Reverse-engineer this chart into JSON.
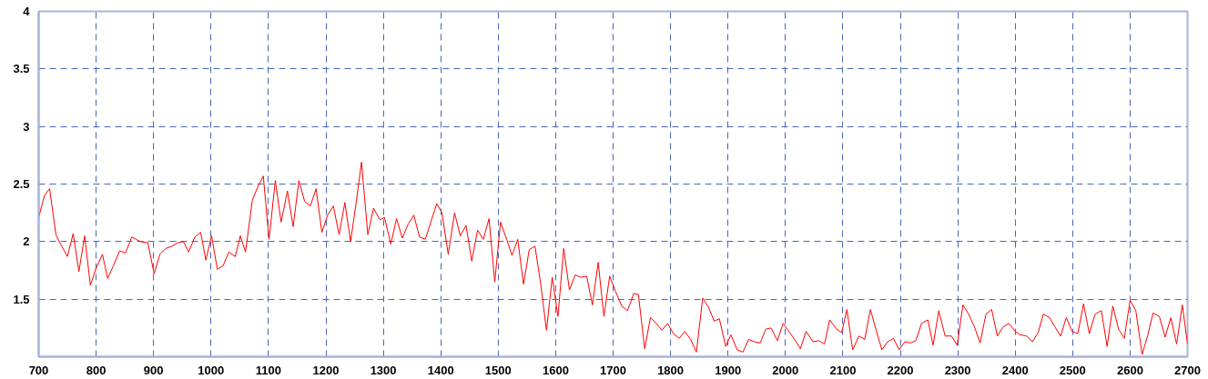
{
  "chart_data": {
    "type": "line",
    "x": [
      700,
      710,
      719,
      730,
      738,
      750,
      760,
      770,
      780,
      790,
      800,
      811,
      820,
      830,
      841,
      851,
      862,
      877,
      890,
      901,
      911,
      921,
      932,
      942,
      952,
      961,
      972,
      982,
      991,
      1001,
      1011,
      1021,
      1031,
      1042,
      1051,
      1060,
      1072,
      1081,
      1091,
      1101,
      1112,
      1122,
      1133,
      1143,
      1153,
      1163,
      1173,
      1183,
      1193,
      1203,
      1213,
      1223,
      1233,
      1243,
      1253,
      1262,
      1273,
      1283,
      1294,
      1302,
      1313,
      1323,
      1333,
      1343,
      1353,
      1363,
      1373,
      1393,
      1402,
      1413,
      1424,
      1434,
      1444,
      1454,
      1464,
      1474,
      1484,
      1494,
      1504,
      1514,
      1524,
      1534,
      1544,
      1554,
      1564,
      1574,
      1584,
      1594,
      1604,
      1614,
      1624,
      1634,
      1644,
      1654,
      1664,
      1674,
      1684,
      1694,
      1704,
      1715,
      1725,
      1736,
      1744,
      1755,
      1765,
      1775,
      1785,
      1795,
      1805,
      1815,
      1825,
      1835,
      1845,
      1856,
      1866,
      1876,
      1885,
      1896,
      1905,
      1916,
      1926,
      1936,
      1946,
      1956,
      1966,
      1975,
      1986,
      1996,
      2006,
      2016,
      2026,
      2036,
      2048,
      2058,
      2068,
      2077,
      2089,
      2098,
      2107,
      2117,
      2128,
      2138,
      2148,
      2158,
      2168,
      2178,
      2188,
      2198,
      2208,
      2218,
      2227,
      2237,
      2248,
      2257,
      2267,
      2278,
      2289,
      2299,
      2309,
      2319,
      2329,
      2339,
      2349,
      2359,
      2369,
      2379,
      2389,
      2400,
      2409,
      2420,
      2430,
      2440,
      2449,
      2460,
      2469,
      2479,
      2489,
      2499,
      2509,
      2519,
      2529,
      2539,
      2550,
      2560,
      2570,
      2580,
      2590,
      2600,
      2610,
      2621,
      2631,
      2640,
      2651,
      2661,
      2671,
      2681,
      2691,
      2700
    ],
    "series": [
      {
        "color": "#ff0000",
        "values": [
          2.21,
          2.4,
          2.46,
          2.06,
          1.98,
          1.87,
          2.07,
          1.74,
          2.05,
          1.62,
          1.77,
          1.89,
          1.68,
          1.79,
          1.92,
          1.9,
          2.04,
          2.0,
          1.99,
          1.72,
          1.89,
          1.94,
          1.96,
          1.99,
          2.0,
          1.91,
          2.04,
          2.08,
          1.84,
          2.05,
          1.76,
          1.79,
          1.91,
          1.87,
          2.05,
          1.91,
          2.36,
          2.47,
          2.57,
          2.02,
          2.53,
          2.17,
          2.44,
          2.13,
          2.53,
          2.35,
          2.31,
          2.46,
          2.08,
          2.23,
          2.31,
          2.06,
          2.34,
          2.0,
          2.35,
          2.69,
          2.06,
          2.29,
          2.19,
          2.21,
          1.98,
          2.2,
          2.03,
          2.15,
          2.23,
          2.04,
          2.02,
          2.33,
          2.25,
          1.89,
          2.25,
          2.05,
          2.14,
          1.83,
          2.1,
          2.02,
          2.2,
          1.65,
          2.17,
          2.03,
          1.88,
          2.02,
          1.63,
          1.93,
          1.96,
          1.63,
          1.23,
          1.69,
          1.35,
          1.94,
          1.58,
          1.71,
          1.69,
          1.7,
          1.45,
          1.82,
          1.35,
          1.7,
          1.57,
          1.44,
          1.4,
          1.55,
          1.54,
          1.07,
          1.34,
          1.29,
          1.23,
          1.29,
          1.2,
          1.16,
          1.22,
          1.15,
          1.04,
          1.51,
          1.43,
          1.31,
          1.33,
          1.09,
          1.19,
          1.06,
          1.04,
          1.15,
          1.13,
          1.12,
          1.24,
          1.25,
          1.14,
          1.29,
          1.22,
          1.15,
          1.07,
          1.22,
          1.13,
          1.14,
          1.11,
          1.32,
          1.24,
          1.21,
          1.41,
          1.06,
          1.18,
          1.15,
          1.41,
          1.23,
          1.06,
          1.13,
          1.16,
          1.06,
          1.13,
          1.12,
          1.14,
          1.29,
          1.32,
          1.1,
          1.4,
          1.18,
          1.18,
          1.1,
          1.45,
          1.37,
          1.26,
          1.12,
          1.37,
          1.41,
          1.18,
          1.26,
          1.29,
          1.22,
          1.19,
          1.18,
          1.13,
          1.21,
          1.37,
          1.34,
          1.26,
          1.18,
          1.34,
          1.22,
          1.2,
          1.46,
          1.2,
          1.37,
          1.4,
          1.09,
          1.44,
          1.24,
          1.16,
          1.49,
          1.4,
          1.02,
          1.19,
          1.38,
          1.35,
          1.17,
          1.34,
          1.11,
          1.45,
          1.11
        ]
      }
    ],
    "xlim": [
      700,
      2700
    ],
    "ylim": [
      1,
      4
    ],
    "xticks": [
      700,
      800,
      900,
      1000,
      1100,
      1200,
      1300,
      1400,
      1500,
      1600,
      1700,
      1800,
      1900,
      2000,
      2100,
      2200,
      2300,
      2400,
      2500,
      2600,
      2700
    ],
    "yticks": [
      1.5,
      2,
      2.5,
      3,
      3.5,
      4
    ],
    "grid": true,
    "line_style": "solid",
    "marker": "none"
  }
}
